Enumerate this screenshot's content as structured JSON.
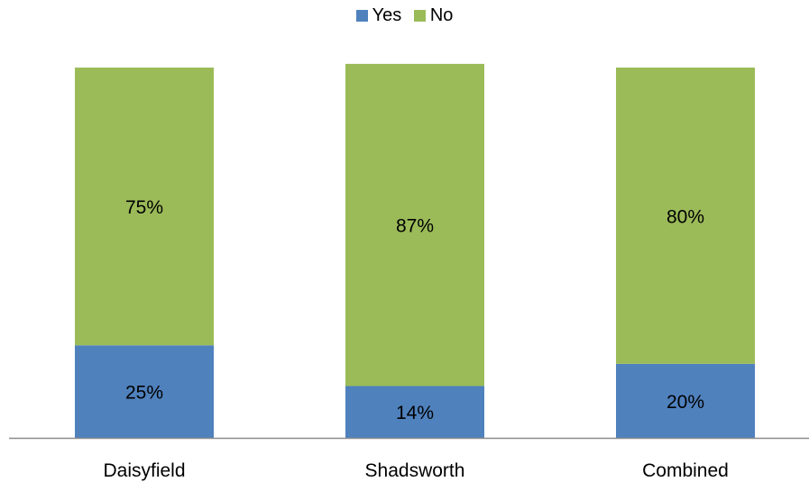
{
  "chart_data": {
    "type": "bar",
    "stacked": true,
    "categories": [
      "Daisyfield",
      "Shadsworth",
      "Combined"
    ],
    "series": [
      {
        "name": "Yes",
        "color": "#4F81BD",
        "values": [
          25,
          14,
          20
        ],
        "labels": [
          "25%",
          "14%",
          "20%"
        ]
      },
      {
        "name": "No",
        "color": "#9BBB59",
        "values": [
          75,
          87,
          80
        ],
        "labels": [
          "75%",
          "87%",
          "80%"
        ]
      }
    ],
    "ylim": [
      0,
      100
    ],
    "legend_position": "top",
    "grid": false
  }
}
